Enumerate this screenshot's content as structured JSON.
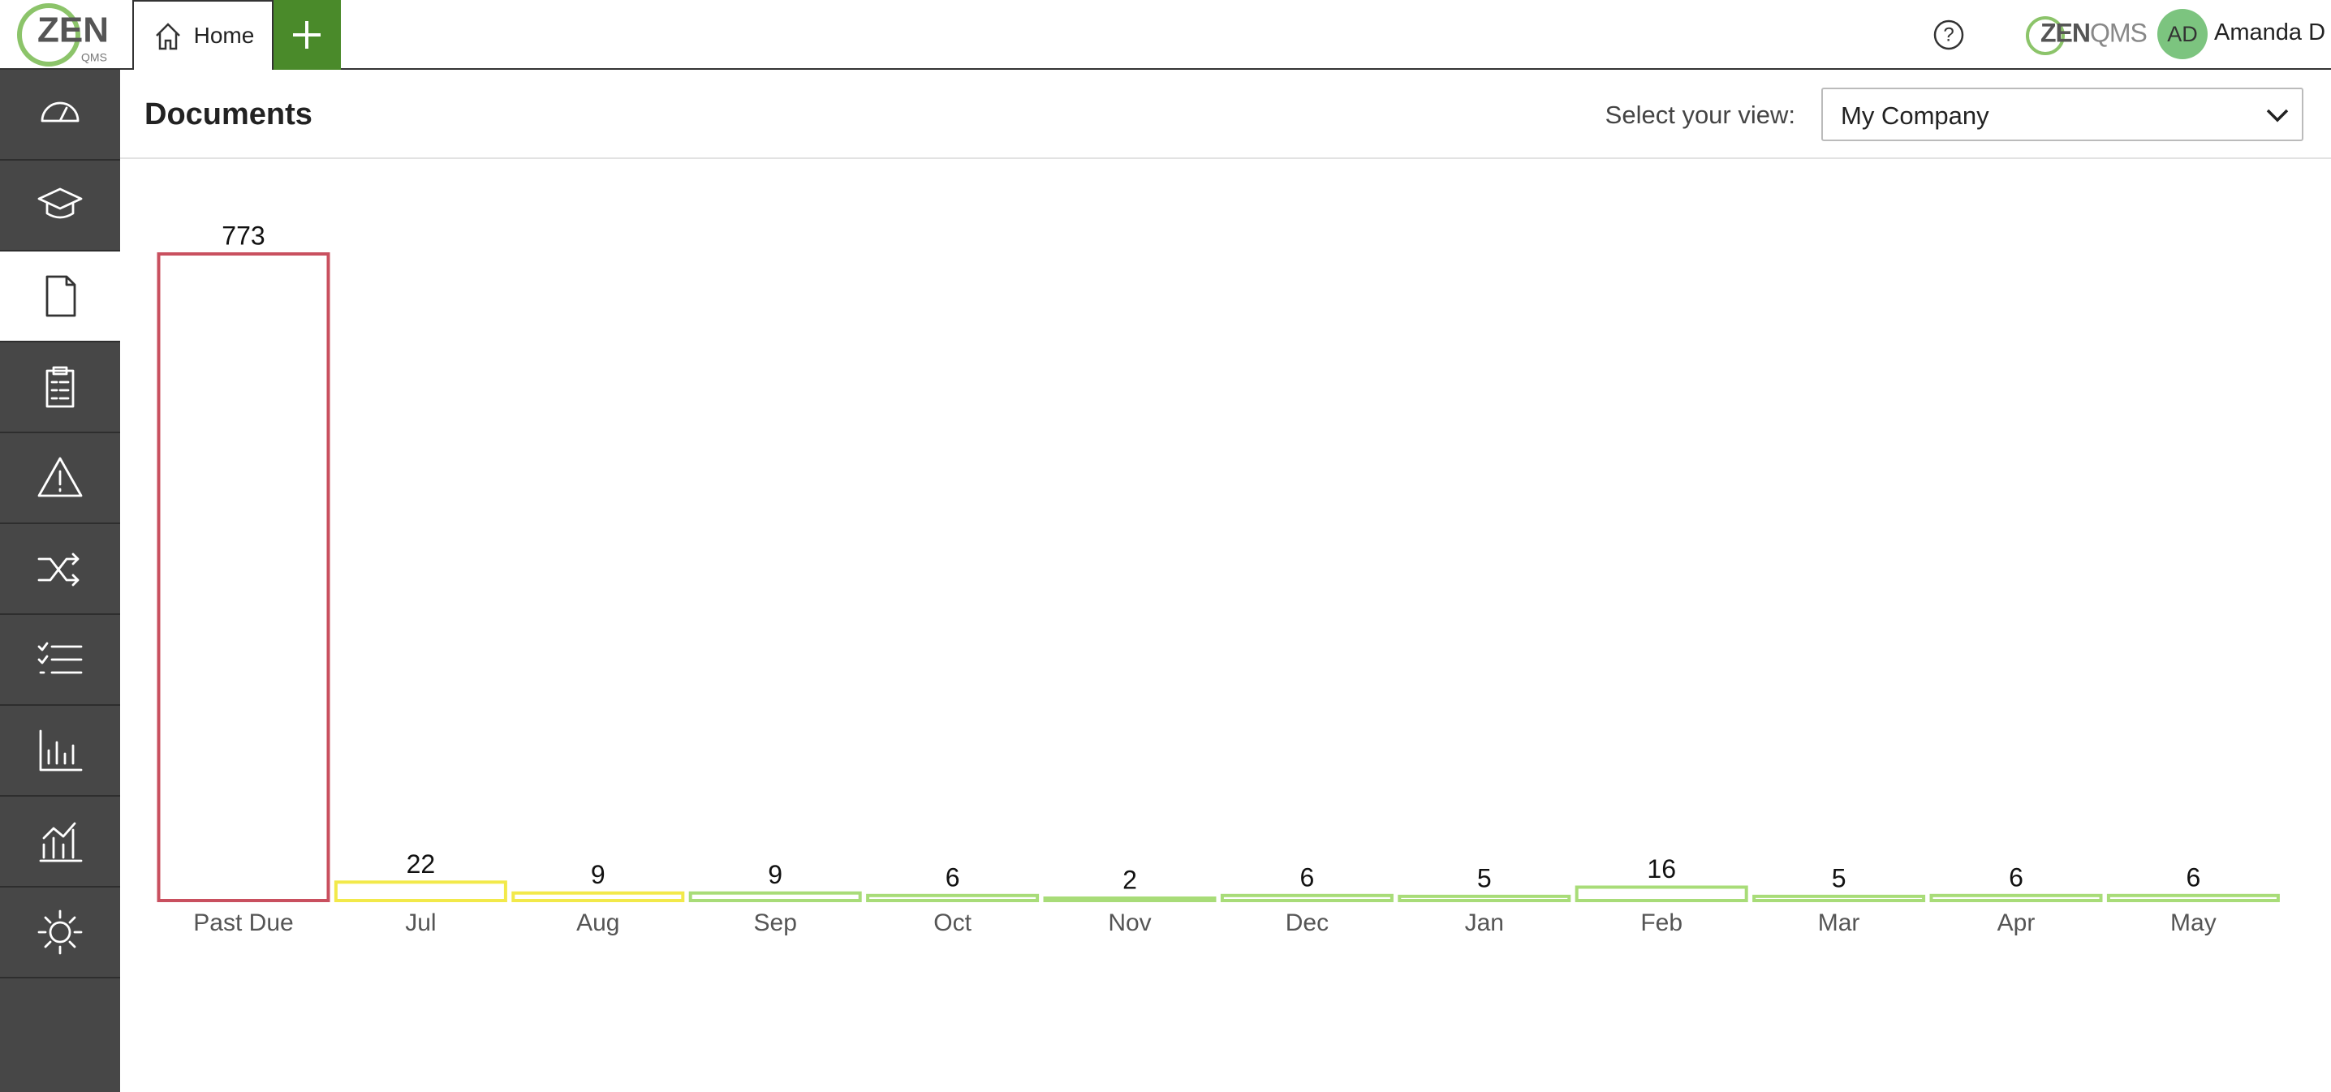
{
  "header": {
    "logo": "ZEN",
    "logo_sub": "QMS",
    "tab": "Home",
    "help": "?",
    "brand_bold": "ZEN",
    "brand_light": "QMS",
    "avatar": "AD",
    "user": "Amanda D"
  },
  "page": {
    "title": "Documents",
    "view_label": "Select your view:",
    "view_value": "My Company"
  },
  "chart_data": {
    "type": "bar",
    "categories": [
      "Past Due",
      "Jul",
      "Aug",
      "Sep",
      "Oct",
      "Nov",
      "Dec",
      "Jan",
      "Feb",
      "Mar",
      "Apr",
      "May"
    ],
    "values": [
      773,
      22,
      9,
      9,
      6,
      2,
      6,
      5,
      16,
      5,
      6,
      6
    ],
    "colors": [
      "#c9505f",
      "#f2e94a",
      "#f2e94a",
      "#a8dc78",
      "#a8dc78",
      "#a8dc78",
      "#a8dc78",
      "#a8dc78",
      "#a8dc78",
      "#a8dc78",
      "#a8dc78",
      "#a8dc78"
    ]
  }
}
